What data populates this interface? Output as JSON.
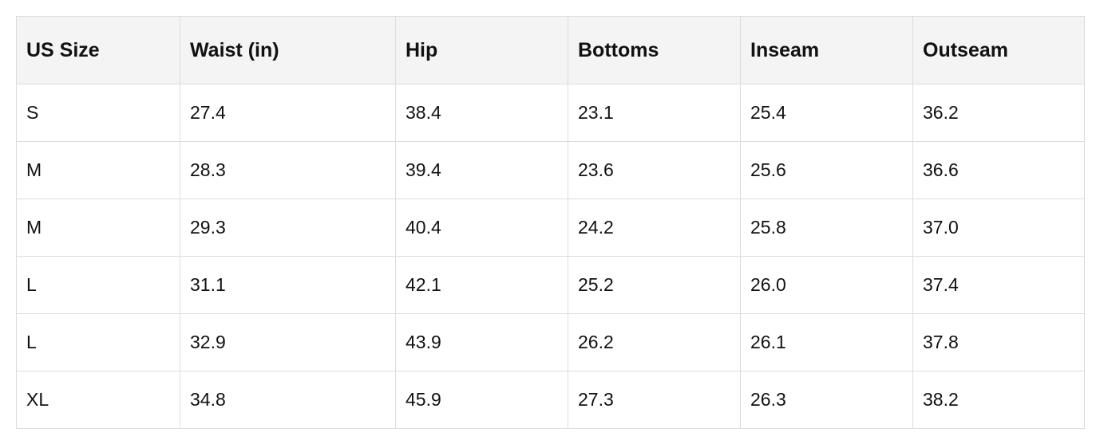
{
  "table": {
    "header": [
      "US Size",
      "Waist (in)",
      "Hip",
      "Bottoms",
      "Inseam",
      "Outseam"
    ],
    "rows": [
      [
        "S",
        "27.4",
        "38.4",
        "23.1",
        "25.4",
        "36.2"
      ],
      [
        "M",
        "28.3",
        "39.4",
        "23.6",
        "25.6",
        "36.6"
      ],
      [
        "M",
        "29.3",
        "40.4",
        "24.2",
        "25.8",
        "37.0"
      ],
      [
        "L",
        "31.1",
        "42.1",
        "25.2",
        "26.0",
        "37.4"
      ],
      [
        "L",
        "32.9",
        "43.9",
        "26.2",
        "26.1",
        "37.8"
      ],
      [
        "XL",
        "34.8",
        "45.9",
        "27.3",
        "26.3",
        "38.2"
      ]
    ]
  }
}
